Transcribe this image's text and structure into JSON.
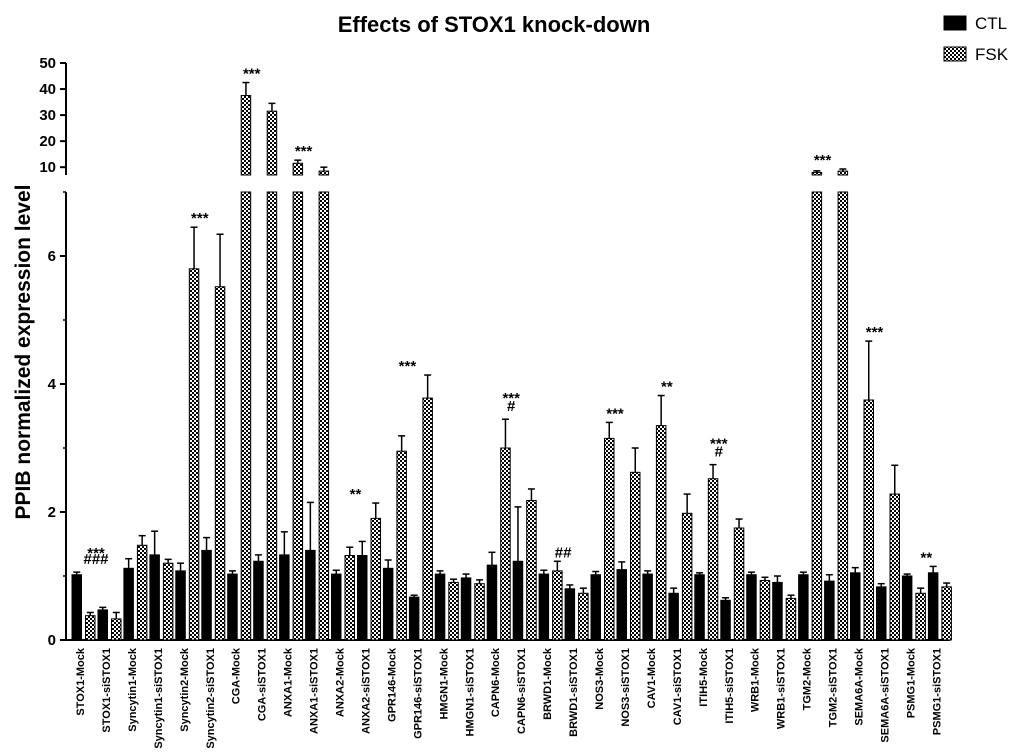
{
  "chart_data": {
    "type": "bar",
    "title": "Effects of STOX1 knock-down",
    "ylabel": "PPIB normalized expression level",
    "xlabel": "",
    "ylim_lower": [
      0,
      7
    ],
    "ylim_upper": [
      7,
      50
    ],
    "yticks_lower": [
      "0",
      "2",
      "4",
      "6"
    ],
    "yticks_upper": [
      "10",
      "20",
      "30",
      "40",
      "50"
    ],
    "legend_position": "top-right",
    "series_names": [
      "CTL",
      "FSK"
    ],
    "series_colors": [
      "#000000",
      "checkered"
    ],
    "groups": [
      {
        "categories": [
          "STOX1-Mock",
          "STOX1-siSTOX1"
        ],
        "ctl": [
          1.02,
          0.47
        ],
        "ctl_err": [
          0.04,
          0.04
        ],
        "fsk": [
          0.38,
          0.33
        ],
        "fsk_err": [
          0.05,
          0.1
        ],
        "sig_ctl": "###",
        "sig_fsk": "***"
      },
      {
        "categories": [
          "Syncytin1-Mock",
          "Syncytin1-siSTOX1"
        ],
        "ctl": [
          1.12,
          1.33
        ],
        "ctl_err": [
          0.15,
          0.37
        ],
        "fsk": [
          1.48,
          1.2
        ],
        "fsk_err": [
          0.15,
          0.06
        ],
        "sig_ctl": "",
        "sig_fsk": ""
      },
      {
        "categories": [
          "Syncytin2-Mock",
          "Syncytin2-siSTOX1"
        ],
        "ctl": [
          1.08,
          1.4
        ],
        "ctl_err": [
          0.12,
          0.2
        ],
        "fsk": [
          5.8,
          5.52
        ],
        "fsk_err": [
          0.65,
          0.82
        ],
        "sig_ctl": "",
        "sig_fsk": "***"
      },
      {
        "categories": [
          "CGA-Mock",
          "CGA-siSTOX1"
        ],
        "ctl": [
          1.03,
          1.23
        ],
        "ctl_err": [
          0.05,
          0.1
        ],
        "fsk": [
          37.5,
          31.5
        ],
        "fsk_err": [
          5.0,
          3.0
        ],
        "sig_ctl": "",
        "sig_fsk": "***"
      },
      {
        "categories": [
          "ANXA1-Mock",
          "ANXA1-siSTOX1"
        ],
        "ctl": [
          1.33,
          1.4
        ],
        "ctl_err": [
          0.36,
          0.75
        ],
        "fsk": [
          11.5,
          8.5
        ],
        "fsk_err": [
          1.2,
          1.5
        ],
        "sig_ctl": "",
        "sig_fsk": "***"
      },
      {
        "categories": [
          "ANXA2-Mock",
          "ANXA2-siSTOX1"
        ],
        "ctl": [
          1.03,
          1.32
        ],
        "ctl_err": [
          0.06,
          0.22
        ],
        "fsk": [
          1.32,
          1.9
        ],
        "fsk_err": [
          0.13,
          0.24
        ],
        "sig_ctl": "",
        "sig_fsk": "**"
      },
      {
        "categories": [
          "GPR146-Mock",
          "GPR146-siSTOX1"
        ],
        "ctl": [
          1.12,
          0.67
        ],
        "ctl_err": [
          0.13,
          0.03
        ],
        "fsk": [
          2.95,
          3.78
        ],
        "fsk_err": [
          0.24,
          0.36
        ],
        "sig_ctl": "",
        "sig_fsk": "***"
      },
      {
        "categories": [
          "HMGN1-Mock",
          "HMGN1-siSTOX1"
        ],
        "ctl": [
          1.03,
          0.97
        ],
        "ctl_err": [
          0.05,
          0.06
        ],
        "fsk": [
          0.9,
          0.88
        ],
        "fsk_err": [
          0.05,
          0.06
        ],
        "sig_ctl": "",
        "sig_fsk": ""
      },
      {
        "categories": [
          "CAPN6-Mock",
          "CAPN6-siSTOX1"
        ],
        "ctl": [
          1.17,
          1.23
        ],
        "ctl_err": [
          0.2,
          0.85
        ],
        "fsk": [
          3.0,
          2.18
        ],
        "fsk_err": [
          0.45,
          0.18
        ],
        "sig_ctl": "",
        "sig_fsk": "***",
        "sig_fsk2": "#"
      },
      {
        "categories": [
          "BRWD1-Mock",
          "BRWD1-siSTOX1"
        ],
        "ctl": [
          1.03,
          0.8
        ],
        "ctl_err": [
          0.06,
          0.06
        ],
        "fsk": [
          1.08,
          0.73
        ],
        "fsk_err": [
          0.15,
          0.08
        ],
        "sig_ctl": "",
        "sig_fsk": "##"
      },
      {
        "categories": [
          "NOS3-Mock",
          "NOS3-siSTOX1"
        ],
        "ctl": [
          1.02,
          1.1
        ],
        "ctl_err": [
          0.05,
          0.12
        ],
        "fsk": [
          3.15,
          2.62
        ],
        "fsk_err": [
          0.25,
          0.38
        ],
        "sig_ctl": "",
        "sig_fsk": "***"
      },
      {
        "categories": [
          "CAV1-Mock",
          "CAV1-siSTOX1"
        ],
        "ctl": [
          1.03,
          0.73
        ],
        "ctl_err": [
          0.05,
          0.08
        ],
        "fsk": [
          3.35,
          1.98
        ],
        "fsk_err": [
          0.47,
          0.3
        ],
        "sig_ctl": "",
        "sig_fsk": "**"
      },
      {
        "categories": [
          "ITIH5-Mock",
          "ITIH5-siSTOX1"
        ],
        "ctl": [
          1.02,
          0.62
        ],
        "ctl_err": [
          0.03,
          0.04
        ],
        "fsk": [
          2.52,
          1.75
        ],
        "fsk_err": [
          0.22,
          0.14
        ],
        "sig_ctl": "",
        "sig_fsk": "***",
        "sig_fsk2": "#"
      },
      {
        "categories": [
          "WRB1-Mock",
          "WRB1-siSTOX1"
        ],
        "ctl": [
          1.02,
          0.9
        ],
        "ctl_err": [
          0.04,
          0.1
        ],
        "fsk": [
          0.93,
          0.65
        ],
        "fsk_err": [
          0.05,
          0.05
        ],
        "sig_ctl": "",
        "sig_fsk": ""
      },
      {
        "categories": [
          "TGM2-Mock",
          "TGM2-siSTOX1"
        ],
        "ctl": [
          1.02,
          0.92
        ],
        "ctl_err": [
          0.04,
          0.1
        ],
        "fsk": [
          8.0,
          8.5
        ],
        "fsk_err": [
          0.6,
          0.8
        ],
        "sig_ctl": "",
        "sig_fsk": "***"
      },
      {
        "categories": [
          "SEMA6A-Mock",
          "SEMA6A-siSTOX1"
        ],
        "ctl": [
          1.05,
          0.83
        ],
        "ctl_err": [
          0.08,
          0.05
        ],
        "fsk": [
          3.75,
          2.28
        ],
        "fsk_err": [
          0.92,
          0.45
        ],
        "sig_ctl": "",
        "sig_fsk": "***"
      },
      {
        "categories": [
          "PSMG1-Mock",
          "PSMG1-siSTOX1"
        ],
        "ctl": [
          1.0,
          1.05
        ],
        "ctl_err": [
          0.03,
          0.1
        ],
        "fsk": [
          0.73,
          0.83
        ],
        "fsk_err": [
          0.08,
          0.06
        ],
        "sig_ctl": "",
        "sig_fsk": "**"
      }
    ]
  }
}
